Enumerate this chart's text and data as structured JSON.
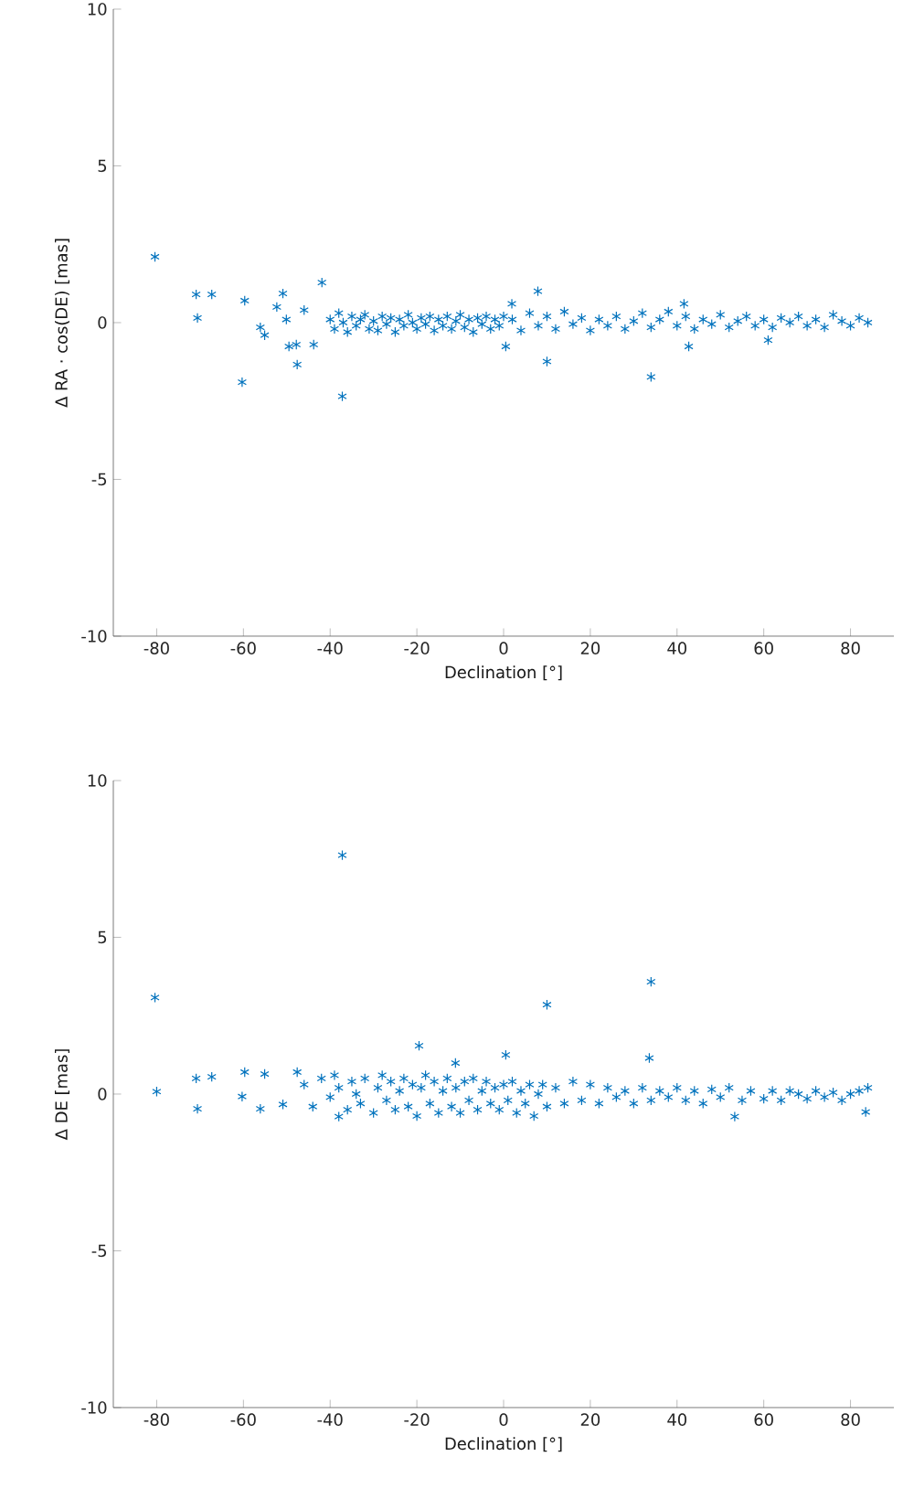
{
  "chart_data": [
    {
      "type": "scatter",
      "xlabel": "Declination [°]",
      "ylabel": "Δ RA · cos(DE) [mas]",
      "color": "#0072bd",
      "marker": "cross",
      "grid": false,
      "legend": false,
      "xlim": [
        -90,
        90
      ],
      "ylim": [
        -10,
        10
      ],
      "xticks": [
        -80,
        -60,
        -40,
        -20,
        0,
        20,
        40,
        60,
        80
      ],
      "yticks": [
        -10,
        -5,
        0,
        5,
        10
      ],
      "x": [
        -80.4,
        -70.9,
        -67.3,
        -70.6,
        -59.7,
        -60.3,
        -56.1,
        -55.1,
        -50.9,
        -52.3,
        -50.1,
        -49.5,
        -47.8,
        -47.6,
        -43.8,
        -41.9,
        -46,
        -37.2,
        7.9,
        0.5,
        10,
        34,
        1.9,
        41.6,
        61,
        42.7,
        -40,
        -39,
        -38,
        -37,
        -36,
        -35,
        -34,
        -33,
        -32,
        -31,
        -30,
        -29,
        -28,
        -27,
        -26,
        -25,
        -24,
        -23,
        -22,
        -21,
        -20,
        -19,
        -18,
        -17,
        -16,
        -15,
        -14,
        -13,
        -12,
        -11,
        -10,
        -9,
        -8,
        -7,
        -6,
        -5,
        -4,
        -3,
        -2,
        -1,
        0,
        2,
        4,
        6,
        8,
        10,
        12,
        14,
        16,
        18,
        20,
        22,
        24,
        26,
        28,
        30,
        32,
        34,
        36,
        38,
        40,
        42,
        44,
        46,
        48,
        50,
        52,
        54,
        56,
        58,
        60,
        62,
        64,
        66,
        68,
        70,
        72,
        74,
        76,
        78,
        80,
        82,
        84
      ],
      "values": [
        2.1,
        0.9,
        0.9,
        0.15,
        0.7,
        -1.9,
        -0.15,
        -0.4,
        0.93,
        0.5,
        0.1,
        -0.76,
        -0.7,
        -1.34,
        -0.7,
        1.28,
        0.4,
        -2.35,
        1.0,
        -0.76,
        -1.24,
        -1.73,
        0.6,
        0.6,
        -0.56,
        -0.76,
        0.1,
        -0.2,
        0.3,
        0.0,
        -0.3,
        0.2,
        -0.1,
        0.1,
        0.25,
        -0.2,
        0.05,
        -0.25,
        0.2,
        -0.05,
        0.15,
        -0.3,
        0.1,
        -0.1,
        0.25,
        0.0,
        -0.2,
        0.15,
        -0.05,
        0.2,
        -0.25,
        0.1,
        -0.1,
        0.2,
        -0.2,
        0.05,
        0.25,
        -0.15,
        0.1,
        -0.3,
        0.15,
        -0.05,
        0.2,
        -0.2,
        0.1,
        -0.1,
        0.2,
        0.1,
        -0.25,
        0.3,
        -0.1,
        0.2,
        -0.2,
        0.35,
        -0.05,
        0.15,
        -0.25,
        0.1,
        -0.1,
        0.2,
        -0.2,
        0.05,
        0.3,
        -0.15,
        0.1,
        0.35,
        -0.1,
        0.2,
        -0.2,
        0.1,
        -0.05,
        0.25,
        -0.15,
        0.05,
        0.2,
        -0.1,
        0.1,
        -0.15,
        0.15,
        0.0,
        0.2,
        -0.1,
        0.1,
        -0.15,
        0.25,
        0.05,
        -0.1,
        0.15,
        0.0
      ]
    },
    {
      "type": "scatter",
      "xlabel": "Declination [°]",
      "ylabel": "Δ DE [mas]",
      "color": "#0072bd",
      "marker": "cross",
      "grid": false,
      "legend": false,
      "xlim": [
        -90,
        90
      ],
      "ylim": [
        -10,
        10
      ],
      "xticks": [
        -80,
        -60,
        -40,
        -20,
        0,
        20,
        40,
        60,
        80
      ],
      "yticks": [
        -10,
        -5,
        0,
        5,
        10
      ],
      "x": [
        -37.2,
        -80.4,
        -80,
        -70.9,
        -67.3,
        -70.6,
        -59.7,
        -60.3,
        -56.1,
        -55.1,
        -50.9,
        -47.6,
        -19.5,
        -11.1,
        0.5,
        -38,
        10,
        34,
        33.6,
        53.3,
        83.5,
        -46,
        -44,
        -42,
        -40,
        -39,
        -38,
        -36,
        -35,
        -34,
        -33,
        -32,
        -30,
        -29,
        -28,
        -27,
        -26,
        -25,
        -24,
        -23,
        -22,
        -21,
        -20,
        -19,
        -18,
        -17,
        -16,
        -15,
        -14,
        -13,
        -12,
        -11,
        -10,
        -9,
        -8,
        -7,
        -6,
        -5,
        -4,
        -3,
        -2,
        -1,
        0,
        1,
        2,
        3,
        4,
        5,
        6,
        7,
        8,
        9,
        10,
        12,
        14,
        16,
        18,
        20,
        22,
        24,
        26,
        28,
        30,
        32,
        34,
        36,
        38,
        40,
        42,
        44,
        46,
        48,
        50,
        52,
        55,
        57,
        60,
        62,
        64,
        66,
        68,
        70,
        72,
        74,
        76,
        78,
        80,
        82,
        84
      ],
      "values": [
        7.62,
        3.08,
        0.08,
        0.5,
        0.55,
        -0.47,
        0.7,
        -0.08,
        -0.47,
        0.64,
        -0.33,
        0.7,
        1.54,
        0.99,
        1.25,
        -0.72,
        2.85,
        3.58,
        1.15,
        -0.72,
        -0.57,
        0.3,
        -0.4,
        0.5,
        -0.1,
        0.6,
        0.2,
        -0.5,
        0.4,
        0.0,
        -0.3,
        0.5,
        -0.6,
        0.2,
        0.6,
        -0.2,
        0.4,
        -0.5,
        0.1,
        0.5,
        -0.4,
        0.3,
        -0.7,
        0.2,
        0.6,
        -0.3,
        0.4,
        -0.6,
        0.1,
        0.5,
        -0.4,
        0.2,
        -0.6,
        0.4,
        -0.2,
        0.5,
        -0.5,
        0.1,
        0.4,
        -0.3,
        0.2,
        -0.5,
        0.3,
        -0.2,
        0.4,
        -0.6,
        0.1,
        -0.3,
        0.3,
        -0.7,
        0.0,
        0.3,
        -0.4,
        0.2,
        -0.3,
        0.4,
        -0.2,
        0.3,
        -0.3,
        0.2,
        -0.1,
        0.1,
        -0.3,
        0.2,
        -0.2,
        0.1,
        -0.1,
        0.2,
        -0.2,
        0.1,
        -0.3,
        0.15,
        -0.1,
        0.2,
        -0.2,
        0.1,
        -0.15,
        0.1,
        -0.2,
        0.1,
        0.0,
        -0.15,
        0.1,
        -0.1,
        0.05,
        -0.2,
        0.0,
        0.1,
        0.2
      ]
    }
  ]
}
